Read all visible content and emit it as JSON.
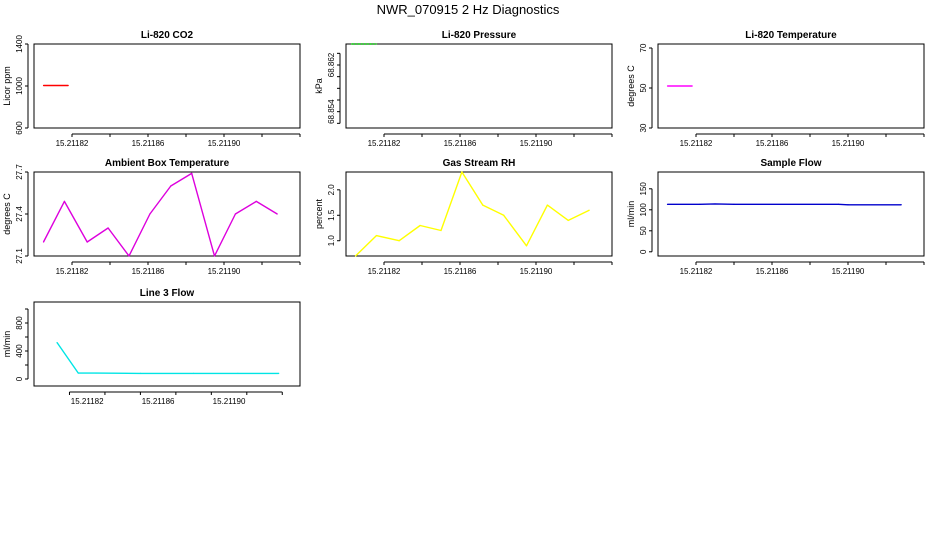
{
  "title": "NWR_070915 2 Hz Diagnostics",
  "chart_data": [
    {
      "type": "line",
      "title": "Li-820 CO2",
      "ylabel": "Licor ppm",
      "color": "#ff0000",
      "xlim": [
        15.2118,
        15.21194
      ],
      "ylim": [
        600,
        1400
      ],
      "yticks": [
        "600",
        "1000",
        "1400"
      ],
      "ytick_values": [
        600,
        1000,
        1400
      ],
      "xticks": [
        "15.21182",
        "15.21186",
        "15.21190"
      ],
      "xtick_values": [
        15.21182,
        15.21186,
        15.2119
      ],
      "x": [
        15.211805,
        15.211818
      ],
      "y": [
        1005,
        1005
      ]
    },
    {
      "type": "line",
      "title": "Li-820 Pressure",
      "ylabel": "kPa",
      "color": "#00cc00",
      "dashed": true,
      "xlim": [
        15.2118,
        15.21194
      ],
      "ylim": [
        68.8512,
        68.8656
      ],
      "yticks": [
        "68.854",
        "68.862"
      ],
      "ytick_values": [
        68.854,
        68.862
      ],
      "minor_yticks": [
        68.852,
        68.856,
        68.858,
        68.86,
        68.864
      ],
      "xticks": [
        "15.21182",
        "15.21186",
        "15.21190"
      ],
      "xtick_values": [
        15.21182,
        15.21186,
        15.2119
      ],
      "x": [
        15.211803,
        15.211816
      ],
      "y": [
        68.8656,
        68.8656
      ]
    },
    {
      "type": "line",
      "title": "Li-820 Temperature",
      "ylabel": "degrees C",
      "color": "#ff00ff",
      "xlim": [
        15.2118,
        15.21194
      ],
      "ylim": [
        30,
        72
      ],
      "yticks": [
        "30",
        "50",
        "70"
      ],
      "ytick_values": [
        30,
        50,
        70
      ],
      "xticks": [
        "15.21182",
        "15.21186",
        "15.21190"
      ],
      "xtick_values": [
        15.21182,
        15.21186,
        15.2119
      ],
      "x": [
        15.211805,
        15.211818
      ],
      "y": [
        51,
        51
      ]
    },
    {
      "type": "line",
      "title": "Ambient Box Temperature",
      "ylabel": "degrees C",
      "color": "#dd00dd",
      "xlim": [
        15.2118,
        15.21194
      ],
      "ylim": [
        27.1,
        27.7
      ],
      "yticks": [
        "27.1",
        "27.4",
        "27.7"
      ],
      "ytick_values": [
        27.1,
        27.4,
        27.7
      ],
      "xticks": [
        "15.21182",
        "15.21186",
        "15.21190"
      ],
      "xtick_values": [
        15.21182,
        15.21186,
        15.2119
      ],
      "x": [
        15.211805,
        15.211816,
        15.211828,
        15.211839,
        15.21185,
        15.211861,
        15.211872,
        15.211883,
        15.211895,
        15.211906,
        15.211917,
        15.211928
      ],
      "y": [
        27.2,
        27.49,
        27.2,
        27.3,
        27.1,
        27.4,
        27.6,
        27.69,
        27.1,
        27.4,
        27.49,
        27.4
      ]
    },
    {
      "type": "line",
      "title": "Gas Stream RH",
      "ylabel": "percent",
      "color": "#ffff00",
      "xlim": [
        15.2118,
        15.21194
      ],
      "ylim": [
        0.7,
        2.35
      ],
      "yticks": [
        "1.0",
        "1.5",
        "2.0"
      ],
      "ytick_values": [
        1.0,
        1.5,
        2.0
      ],
      "xticks": [
        "15.21182",
        "15.21186",
        "15.21190"
      ],
      "xtick_values": [
        15.21182,
        15.21186,
        15.2119
      ],
      "x": [
        15.211805,
        15.211816,
        15.211828,
        15.211839,
        15.21185,
        15.211861,
        15.211872,
        15.211883,
        15.211895,
        15.211906,
        15.211917,
        15.211928
      ],
      "y": [
        0.7,
        1.1,
        1.0,
        1.3,
        1.2,
        2.35,
        1.7,
        1.5,
        0.9,
        1.7,
        1.4,
        1.6
      ]
    },
    {
      "type": "line",
      "title": "Sample Flow",
      "ylabel": "ml/min",
      "color": "#0000cc",
      "xlim": [
        15.2118,
        15.21194
      ],
      "ylim": [
        -10,
        190
      ],
      "yticks": [
        "0",
        "50",
        "100",
        "150"
      ],
      "ytick_values": [
        0,
        50,
        100,
        150
      ],
      "xticks": [
        "15.21182",
        "15.21186",
        "15.21190"
      ],
      "xtick_values": [
        15.21182,
        15.21186,
        15.2119
      ],
      "x": [
        15.211805,
        15.211822,
        15.21183,
        15.21184,
        15.211895,
        15.2119,
        15.211928
      ],
      "y": [
        113,
        113,
        114,
        113,
        113,
        112,
        112
      ]
    },
    {
      "type": "line",
      "title": "Line 3 Flow",
      "ylabel": "ml/min",
      "color": "#00e5e5",
      "xlim": [
        15.21179,
        15.21194
      ],
      "ylim": [
        -100,
        1100
      ],
      "yticks": [
        "0",
        "400",
        "800"
      ],
      "ytick_values": [
        0,
        400,
        800
      ],
      "minor_yticks": [
        200,
        600,
        1000
      ],
      "xticks": [
        "15.21182",
        "15.21186",
        "15.21190"
      ],
      "xtick_values": [
        15.21182,
        15.21186,
        15.2119
      ],
      "x": [
        15.211803,
        15.211815,
        15.211825,
        15.21185,
        15.21188,
        15.211905,
        15.211928
      ],
      "y": [
        520,
        85,
        85,
        80,
        80,
        80,
        80
      ]
    }
  ]
}
